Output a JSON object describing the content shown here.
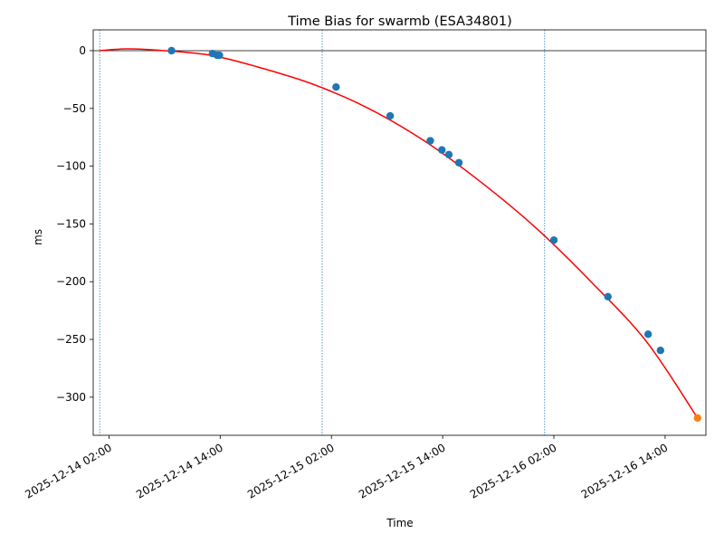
{
  "chart_data": {
    "type": "line",
    "title": "Time Bias for swarmb (ESA34801)",
    "xlabel": "Time",
    "ylabel": "ms",
    "x_unit": "hours",
    "xlim": [
      "2025-12-14 00:18",
      "2025-12-16 18:24"
    ],
    "ylim": [
      -333,
      18
    ],
    "y_ticks": [
      0,
      -50,
      -100,
      -150,
      -200,
      -250,
      -300
    ],
    "x_ticks": [
      "2025-12-14 02:00",
      "2025-12-14 14:00",
      "2025-12-15 02:00",
      "2025-12-15 14:00",
      "2025-12-16 02:00",
      "2025-12-16 14:00"
    ],
    "grid": false,
    "legend": "none",
    "colors": {
      "fit_line": "#ff0000",
      "observed": "#1f77b4",
      "predicted": "#ff7f0e",
      "vline": "#1f77b4",
      "zero_line": "#000000"
    },
    "vertical_lines": [
      "2025-12-14 01:00",
      "2025-12-15 01:00",
      "2025-12-16 01:00"
    ],
    "fit_curve": {
      "x": [
        "2025-12-14 01:00",
        "2025-12-14 04:00",
        "2025-12-14 08:00",
        "2025-12-14 13:00",
        "2025-12-14 18:00",
        "2025-12-15 00:00",
        "2025-12-15 06:00",
        "2025-12-15 12:00",
        "2025-12-15 18:00",
        "2025-12-16 00:00",
        "2025-12-16 06:00",
        "2025-12-16 12:00",
        "2025-12-16 17:30"
      ],
      "y": [
        0,
        1.5,
        0,
        -4,
        -14,
        -29,
        -50,
        -78,
        -113,
        -153,
        -200,
        -252,
        -318
      ]
    },
    "observed": {
      "x": [
        "2025-12-14 08:45",
        "2025-12-14 13:10",
        "2025-12-14 13:40",
        "2025-12-14 13:55",
        "2025-12-15 02:30",
        "2025-12-15 08:20",
        "2025-12-15 12:40",
        "2025-12-15 13:55",
        "2025-12-15 14:40",
        "2025-12-15 15:45",
        "2025-12-16 02:00",
        "2025-12-16 07:50",
        "2025-12-16 12:10",
        "2025-12-16 13:30"
      ],
      "y": [
        0,
        -2.5,
        -4,
        -4,
        -31.5,
        -56.5,
        -78,
        -86,
        -90,
        -97,
        -164,
        -213,
        -245.5,
        -259.5
      ]
    },
    "predicted": {
      "x": [
        "2025-12-16 17:30"
      ],
      "y": [
        -318
      ]
    }
  }
}
